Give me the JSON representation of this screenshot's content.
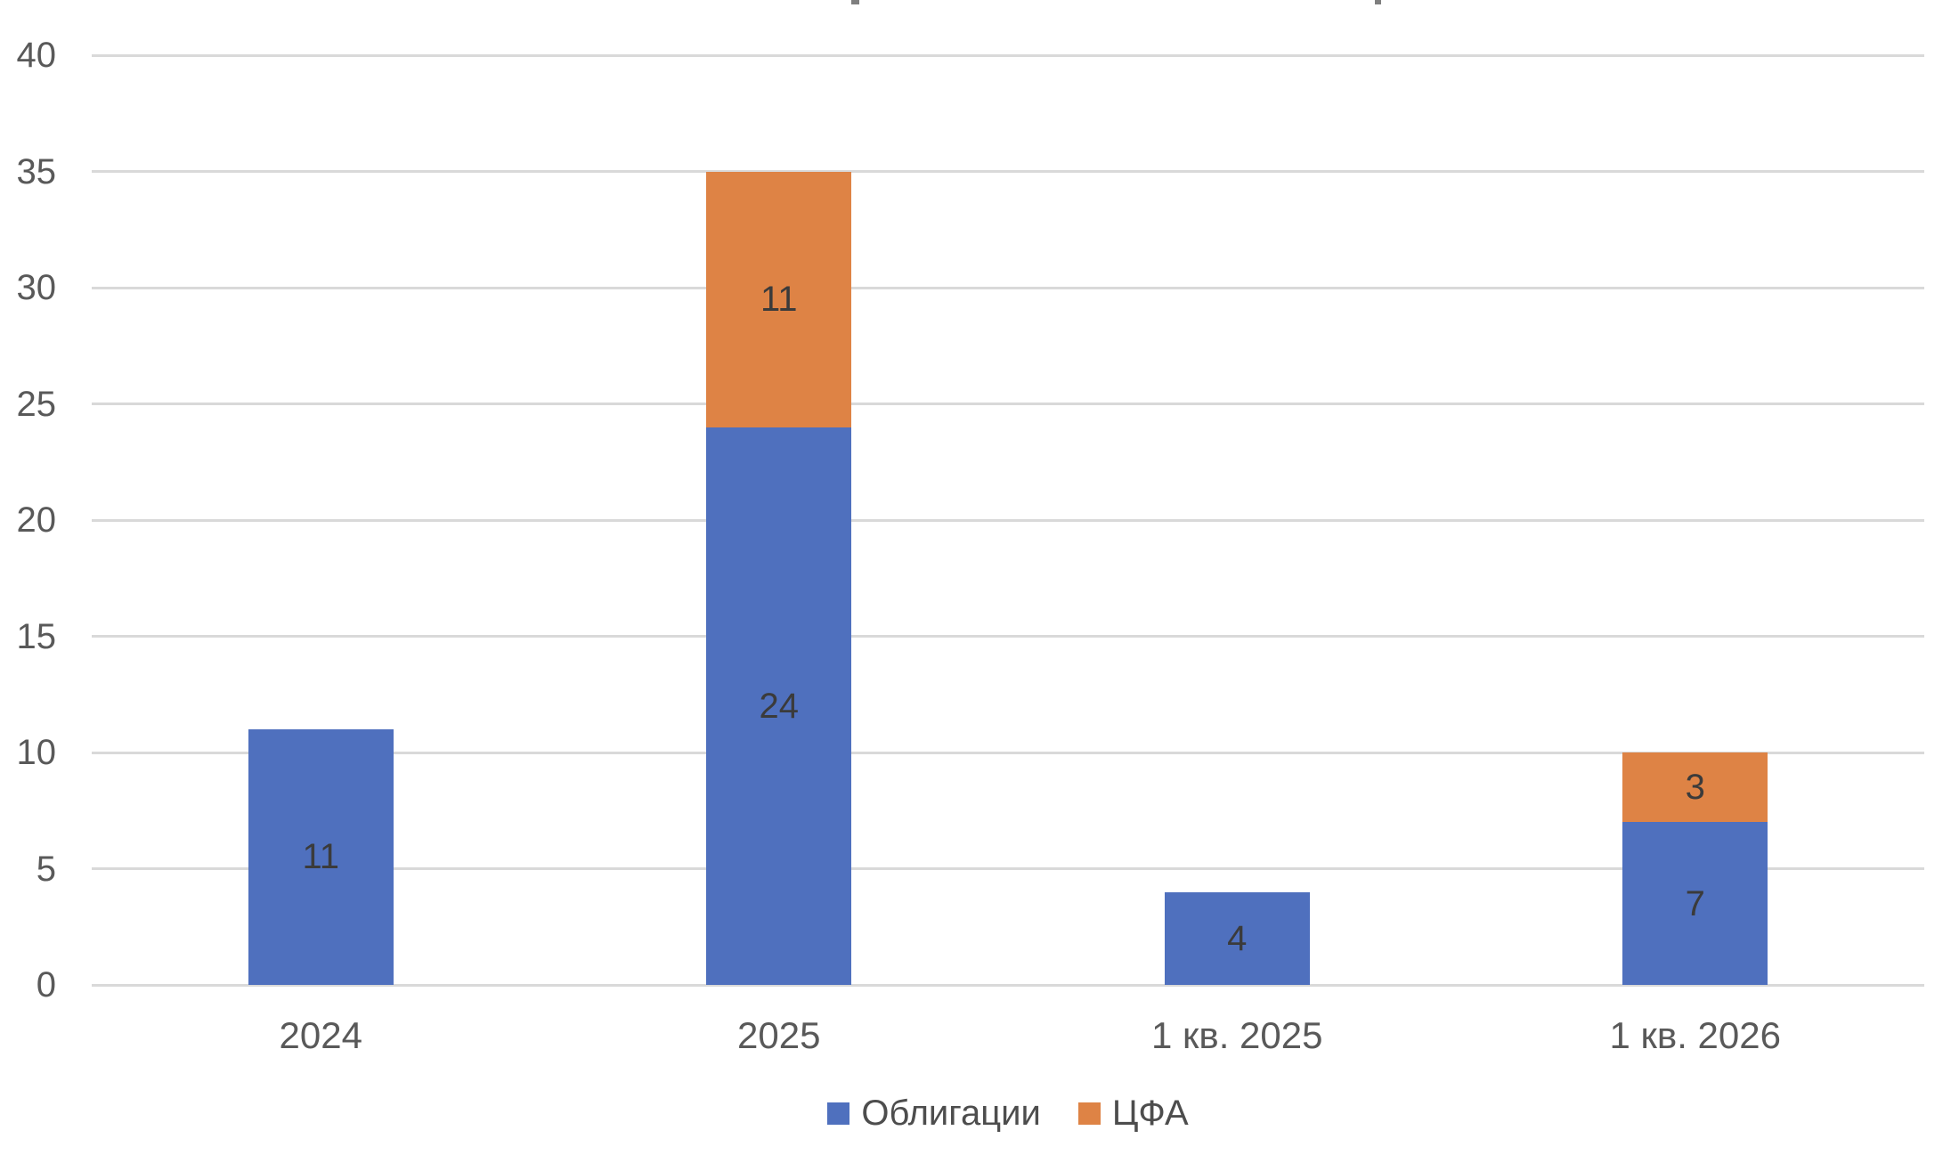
{
  "chart_data": {
    "type": "bar",
    "stacked": true,
    "title": "",
    "categories": [
      "2024",
      "2025",
      "1 кв. 2025",
      "1 кв. 2026"
    ],
    "series": [
      {
        "name": "Облигации",
        "color": "#4F70BE",
        "values": [
          11,
          24,
          4,
          7
        ]
      },
      {
        "name": "ЦФА",
        "color": "#DE8345",
        "values": [
          0,
          11,
          0,
          3
        ]
      }
    ],
    "totals": [
      11,
      35,
      4,
      10
    ],
    "ylim": [
      0,
      40
    ],
    "yticks": [
      0,
      5,
      10,
      15,
      20,
      25,
      30,
      35,
      40
    ],
    "grid": true,
    "legend_position": "bottom",
    "value_labels": "center"
  },
  "colors": {
    "background": "#FFFFFF",
    "gridline": "#D9D9D9",
    "axis_label": "#595959",
    "value_label": "#3B3B3B",
    "legend_label": "#4D4D4D",
    "series_blue": "#4F70BE",
    "series_orange": "#DE8345"
  }
}
